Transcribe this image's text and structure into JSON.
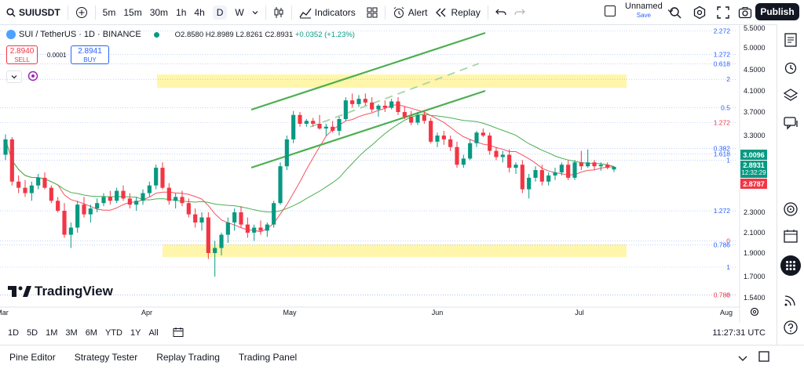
{
  "topbar": {
    "symbol": "SUIUSDT",
    "timeframes": [
      "5m",
      "15m",
      "30m",
      "1h",
      "4h",
      "D",
      "W"
    ],
    "active_timeframe": "D",
    "indicators": "Indicators",
    "alert": "Alert",
    "replay": "Replay",
    "layout_name": "Unnamed",
    "layout_sub": "Save",
    "publish": "Publish"
  },
  "legend": {
    "title": "SUI / TetherUS · 1D · BINANCE",
    "o": "O2.8580",
    "h": "H2.8989",
    "l": "L2.8261",
    "c": "C2.8931",
    "chg": "+0.0352 (+1.23%)"
  },
  "trade": {
    "sell_price": "2.8940",
    "sell_label": "SELL",
    "spread": "0.0001",
    "buy_price": "2.8941",
    "buy_label": "BUY"
  },
  "logo_text": "TradingView",
  "colors": {
    "up": "#089981",
    "down": "#f23645",
    "ma_red": "#f7525f",
    "ma_green": "#4caf50",
    "channel": "#4caf50",
    "fib_zone": "#fff59d",
    "fib_line": "#2962ff"
  },
  "chart_data": {
    "type": "candlestick",
    "symbol": "SUI / TetherUS",
    "interval": "1D",
    "y_ticks": [
      "5.5000",
      "5.0000",
      "4.5000",
      "4.1000",
      "3.7000",
      "3.3000",
      "2.3000",
      "2.1000",
      "1.9000",
      "1.7000",
      "1.5400"
    ],
    "x_ticks": [
      "Mar",
      "Apr",
      "May",
      "Jun",
      "Jul",
      "Aug"
    ],
    "fib_labels": [
      {
        "text": "2.272",
        "price": 5.43
      },
      {
        "text": "1.272",
        "price": 4.85
      },
      {
        "text": "0.618",
        "price": 4.63
      },
      {
        "text": "2",
        "price": 4.32
      },
      {
        "text": "0.5",
        "price": 3.78
      },
      {
        "text": "1.272",
        "price": 3.52
      },
      {
        "text": "0.382",
        "price": 3.13
      },
      {
        "text": "1.618",
        "price": 3.06
      },
      {
        "text": "1",
        "price": 2.98
      },
      {
        "text": "1.272",
        "price": 2.32
      },
      {
        "text": "0",
        "price": 2.02
      },
      {
        "text": "0.786",
        "price": 1.98
      },
      {
        "text": "1",
        "price": 1.78
      },
      {
        "text": "0",
        "price": 1.56
      },
      {
        "text": "0.786",
        "price": 1.56
      }
    ],
    "last_price": "2.8931",
    "countdown": "12:32:29",
    "upper_label": "3.0096",
    "lower_label": "2.8787",
    "time_label": "11:27:31 UTC",
    "candles": [
      [
        3.05,
        3.32,
        2.98,
        3.25
      ],
      [
        3.25,
        3.28,
        2.65,
        2.7
      ],
      [
        2.7,
        2.78,
        2.55,
        2.62
      ],
      [
        2.62,
        2.72,
        2.5,
        2.55
      ],
      [
        2.55,
        2.7,
        2.45,
        2.65
      ],
      [
        2.65,
        2.8,
        2.6,
        2.75
      ],
      [
        2.75,
        2.82,
        2.6,
        2.62
      ],
      [
        2.62,
        2.65,
        2.42,
        2.45
      ],
      [
        2.45,
        2.5,
        2.3,
        2.32
      ],
      [
        2.32,
        2.42,
        2.05,
        2.08
      ],
      [
        2.08,
        2.2,
        1.95,
        2.15
      ],
      [
        2.15,
        2.45,
        2.1,
        2.4
      ],
      [
        2.4,
        2.5,
        2.25,
        2.28
      ],
      [
        2.28,
        2.4,
        2.2,
        2.35
      ],
      [
        2.35,
        2.48,
        2.3,
        2.42
      ],
      [
        2.42,
        2.55,
        2.38,
        2.5
      ],
      [
        2.5,
        2.58,
        2.4,
        2.45
      ],
      [
        2.45,
        2.62,
        2.42,
        2.58
      ],
      [
        2.58,
        2.65,
        2.45,
        2.48
      ],
      [
        2.48,
        2.55,
        2.35,
        2.4
      ],
      [
        2.4,
        2.5,
        2.32,
        2.45
      ],
      [
        2.45,
        2.6,
        2.4,
        2.55
      ],
      [
        2.55,
        2.7,
        2.5,
        2.65
      ],
      [
        2.65,
        2.92,
        2.6,
        2.88
      ],
      [
        2.88,
        2.95,
        2.6,
        2.62
      ],
      [
        2.62,
        2.68,
        2.4,
        2.45
      ],
      [
        2.45,
        2.55,
        2.35,
        2.5
      ],
      [
        2.5,
        2.58,
        2.38,
        2.42
      ],
      [
        2.42,
        2.48,
        2.25,
        2.28
      ],
      [
        2.28,
        2.35,
        2.15,
        2.2
      ],
      [
        2.2,
        2.3,
        2.12,
        2.25
      ],
      [
        2.25,
        2.3,
        1.85,
        1.9
      ],
      [
        1.9,
        2.02,
        1.7,
        1.95
      ],
      [
        1.95,
        2.1,
        1.88,
        2.08
      ],
      [
        2.08,
        2.25,
        2.0,
        2.2
      ],
      [
        2.2,
        2.35,
        2.12,
        2.3
      ],
      [
        2.3,
        2.38,
        2.15,
        2.18
      ],
      [
        2.18,
        2.25,
        2.05,
        2.1
      ],
      [
        2.1,
        2.18,
        2.02,
        2.15
      ],
      [
        2.15,
        2.22,
        2.08,
        2.12
      ],
      [
        2.12,
        2.2,
        2.06,
        2.18
      ],
      [
        2.18,
        2.45,
        2.15,
        2.42
      ],
      [
        2.42,
        2.95,
        2.4,
        2.9
      ],
      [
        2.9,
        3.3,
        2.85,
        3.25
      ],
      [
        3.25,
        3.72,
        3.2,
        3.65
      ],
      [
        3.65,
        3.7,
        3.45,
        3.5
      ],
      [
        3.5,
        3.58,
        3.45,
        3.55
      ],
      [
        3.55,
        3.6,
        3.45,
        3.5
      ],
      [
        3.5,
        3.65,
        3.4,
        3.42
      ],
      [
        3.42,
        3.5,
        3.3,
        3.45
      ],
      [
        3.45,
        3.55,
        3.35,
        3.38
      ],
      [
        3.38,
        3.62,
        3.3,
        3.58
      ],
      [
        3.58,
        3.98,
        3.55,
        3.92
      ],
      [
        3.92,
        4.05,
        3.78,
        3.85
      ],
      [
        3.85,
        4.02,
        3.8,
        3.95
      ],
      [
        3.95,
        4.05,
        3.82,
        3.88
      ],
      [
        3.88,
        3.98,
        3.7,
        3.75
      ],
      [
        3.75,
        3.85,
        3.62,
        3.82
      ],
      [
        3.82,
        3.92,
        3.7,
        3.78
      ],
      [
        3.78,
        3.95,
        3.75,
        3.9
      ],
      [
        3.9,
        3.98,
        3.65,
        3.7
      ],
      [
        3.7,
        3.8,
        3.58,
        3.62
      ],
      [
        3.62,
        3.72,
        3.48,
        3.52
      ],
      [
        3.52,
        3.7,
        3.48,
        3.65
      ],
      [
        3.65,
        3.72,
        3.5,
        3.55
      ],
      [
        3.55,
        3.6,
        3.2,
        3.22
      ],
      [
        3.22,
        3.35,
        3.15,
        3.3
      ],
      [
        3.3,
        3.38,
        3.18,
        3.25
      ],
      [
        3.25,
        3.3,
        3.1,
        3.15
      ],
      [
        3.15,
        3.22,
        2.88,
        2.92
      ],
      [
        2.92,
        3.05,
        2.88,
        3.0
      ],
      [
        3.0,
        3.25,
        2.98,
        3.2
      ],
      [
        3.2,
        3.38,
        3.15,
        3.35
      ],
      [
        3.35,
        3.42,
        3.28,
        3.3
      ],
      [
        3.3,
        3.35,
        3.05,
        3.1
      ],
      [
        3.1,
        3.15,
        2.98,
        3.02
      ],
      [
        3.02,
        3.1,
        2.95,
        3.05
      ],
      [
        3.05,
        3.12,
        2.82,
        2.88
      ],
      [
        2.88,
        2.95,
        2.8,
        2.92
      ],
      [
        2.92,
        2.98,
        2.55,
        2.6
      ],
      [
        2.6,
        2.8,
        2.48,
        2.75
      ],
      [
        2.75,
        2.9,
        2.7,
        2.85
      ],
      [
        2.85,
        2.92,
        2.65,
        2.7
      ],
      [
        2.7,
        2.82,
        2.65,
        2.78
      ],
      [
        2.78,
        2.88,
        2.72,
        2.82
      ],
      [
        2.82,
        2.95,
        2.78,
        2.92
      ],
      [
        2.92,
        2.98,
        2.72,
        2.75
      ],
      [
        2.75,
        2.98,
        2.72,
        2.95
      ],
      [
        2.95,
        3.1,
        2.85,
        2.9
      ],
      [
        2.9,
        3.12,
        2.88,
        2.95
      ],
      [
        2.95,
        2.98,
        2.85,
        2.9
      ],
      [
        2.9,
        2.95,
        2.84,
        2.92
      ],
      [
        2.92,
        2.95,
        2.86,
        2.88
      ],
      [
        2.858,
        2.899,
        2.826,
        2.893
      ]
    ]
  },
  "range_buttons": [
    "1D",
    "5D",
    "1M",
    "3M",
    "6M",
    "YTD",
    "1Y",
    "All"
  ],
  "bottom_tabs": [
    "Pine Editor",
    "Strategy Tester",
    "Replay Trading",
    "Trading Panel"
  ]
}
